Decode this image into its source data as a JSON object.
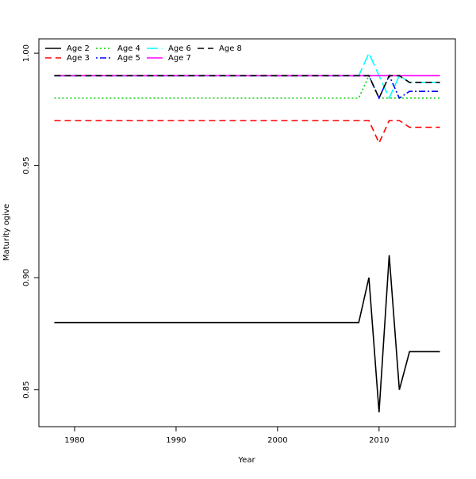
{
  "chart_data": {
    "type": "line",
    "xlabel": "Year",
    "ylabel": "Maturity ogive",
    "x": [
      1978,
      1979,
      1980,
      1981,
      1982,
      1983,
      1984,
      1985,
      1986,
      1987,
      1988,
      1989,
      1990,
      1991,
      1992,
      1993,
      1994,
      1995,
      1996,
      1997,
      1998,
      1999,
      2000,
      2001,
      2002,
      2003,
      2004,
      2005,
      2006,
      2007,
      2008,
      2009,
      2010,
      2011,
      2012,
      2013,
      2014,
      2015,
      2016
    ],
    "xlim": [
      1976.48,
      2017.52
    ],
    "xticks": [
      1980,
      1990,
      2000,
      2010
    ],
    "ylim": [
      0.8336,
      1.0064
    ],
    "yticks": [
      {
        "value": 1,
        "label": "1.00"
      },
      0.95,
      {
        "value": 0.9,
        "label": "0.90"
      },
      0.85
    ],
    "legend": "topleft",
    "series": [
      {
        "name": "Age 2",
        "color": "#000000",
        "dash": "none",
        "values": [
          0.88,
          0.88,
          0.88,
          0.88,
          0.88,
          0.88,
          0.88,
          0.88,
          0.88,
          0.88,
          0.88,
          0.88,
          0.88,
          0.88,
          0.88,
          0.88,
          0.88,
          0.88,
          0.88,
          0.88,
          0.88,
          0.88,
          0.88,
          0.88,
          0.88,
          0.88,
          0.88,
          0.88,
          0.88,
          0.88,
          0.88,
          0.9,
          0.84,
          0.91,
          0.85,
          0.867,
          0.867,
          0.867,
          0.867
        ]
      },
      {
        "name": "Age 3",
        "color": "#ff0000",
        "dash": "8 5",
        "values": [
          0.97,
          0.97,
          0.97,
          0.97,
          0.97,
          0.97,
          0.97,
          0.97,
          0.97,
          0.97,
          0.97,
          0.97,
          0.97,
          0.97,
          0.97,
          0.97,
          0.97,
          0.97,
          0.97,
          0.97,
          0.97,
          0.97,
          0.97,
          0.97,
          0.97,
          0.97,
          0.97,
          0.97,
          0.97,
          0.97,
          0.97,
          0.97,
          0.96,
          0.97,
          0.97,
          0.967,
          0.967,
          0.967,
          0.967
        ]
      },
      {
        "name": "Age 4",
        "color": "#00cd00",
        "dash": "2 3",
        "values": [
          0.98,
          0.98,
          0.98,
          0.98,
          0.98,
          0.98,
          0.98,
          0.98,
          0.98,
          0.98,
          0.98,
          0.98,
          0.98,
          0.98,
          0.98,
          0.98,
          0.98,
          0.98,
          0.98,
          0.98,
          0.98,
          0.98,
          0.98,
          0.98,
          0.98,
          0.98,
          0.98,
          0.98,
          0.98,
          0.98,
          0.98,
          0.99,
          0.98,
          0.98,
          0.98,
          0.98,
          0.98,
          0.98,
          0.98
        ]
      },
      {
        "name": "Age 5",
        "color": "#0000ff",
        "dash": "2 3 8 3",
        "values": [
          0.99,
          0.99,
          0.99,
          0.99,
          0.99,
          0.99,
          0.99,
          0.99,
          0.99,
          0.99,
          0.99,
          0.99,
          0.99,
          0.99,
          0.99,
          0.99,
          0.99,
          0.99,
          0.99,
          0.99,
          0.99,
          0.99,
          0.99,
          0.99,
          0.99,
          0.99,
          0.99,
          0.99,
          0.99,
          0.99,
          0.99,
          0.99,
          0.98,
          0.99,
          0.98,
          0.983,
          0.983,
          0.983,
          0.983
        ]
      },
      {
        "name": "Age 6",
        "color": "#00ffff",
        "dash": "14 5",
        "values": [
          0.99,
          0.99,
          0.99,
          0.99,
          0.99,
          0.99,
          0.99,
          0.99,
          0.99,
          0.99,
          0.99,
          0.99,
          0.99,
          0.99,
          0.99,
          0.99,
          0.99,
          0.99,
          0.99,
          0.99,
          0.99,
          0.99,
          0.99,
          0.99,
          0.99,
          0.99,
          0.99,
          0.99,
          0.99,
          0.99,
          0.99,
          1.0,
          0.99,
          0.98,
          0.99,
          0.987,
          0.987,
          0.987,
          0.987
        ]
      },
      {
        "name": "Age 7",
        "color": "#ff00ff",
        "dash": "none",
        "values": [
          0.99,
          0.99,
          0.99,
          0.99,
          0.99,
          0.99,
          0.99,
          0.99,
          0.99,
          0.99,
          0.99,
          0.99,
          0.99,
          0.99,
          0.99,
          0.99,
          0.99,
          0.99,
          0.99,
          0.99,
          0.99,
          0.99,
          0.99,
          0.99,
          0.99,
          0.99,
          0.99,
          0.99,
          0.99,
          0.99,
          0.99,
          0.99,
          0.99,
          0.99,
          0.99,
          0.99,
          0.99,
          0.99,
          0.99
        ]
      },
      {
        "name": "Age 8",
        "color": "#000000",
        "dash": "8 5",
        "values": [
          0.99,
          0.99,
          0.99,
          0.99,
          0.99,
          0.99,
          0.99,
          0.99,
          0.99,
          0.99,
          0.99,
          0.99,
          0.99,
          0.99,
          0.99,
          0.99,
          0.99,
          0.99,
          0.99,
          0.99,
          0.99,
          0.99,
          0.99,
          0.99,
          0.99,
          0.99,
          0.99,
          0.99,
          0.99,
          0.99,
          0.99,
          0.99,
          0.98,
          0.99,
          0.99,
          0.987,
          0.987,
          0.987,
          0.987
        ]
      }
    ]
  }
}
